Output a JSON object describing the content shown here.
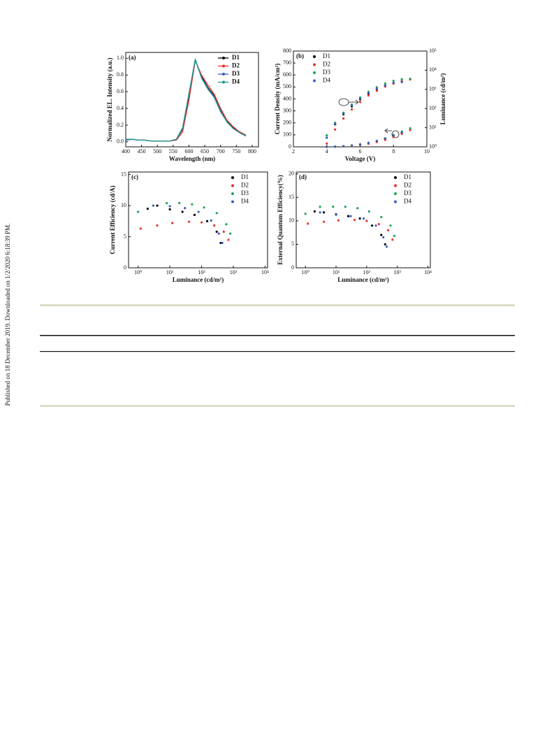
{
  "side_note": "Published on 18 December 2019. Downloaded on 1/2/2020 6:18:39 PM.",
  "chart_data": [
    {
      "type": "line",
      "panel_label": "(a)",
      "xlabel": "Wavelength (nm)",
      "ylabel": "Normalized EL. Intensity (a.u.)",
      "xlim": [
        400,
        820
      ],
      "xticks": [
        400,
        450,
        500,
        550,
        600,
        650,
        700,
        750,
        800
      ],
      "ylim": [
        -0.06,
        1.07
      ],
      "yticks": [
        {
          "value": 0,
          "label": "0.0"
        },
        0.2,
        0.4,
        0.6,
        0.8,
        {
          "value": 1,
          "label": "1.0"
        }
      ],
      "legend": "upper right",
      "legend_bold": true,
      "x": [
        400,
        420,
        440,
        460,
        480,
        500,
        520,
        540,
        560,
        580,
        600,
        620,
        640,
        660,
        680,
        700,
        720,
        740,
        760,
        780
      ],
      "series": [
        {
          "name": "D1",
          "color": "#000000",
          "values": [
            0.02,
            0.03,
            0.02,
            0.02,
            0.01,
            0.01,
            0.01,
            0.01,
            0.03,
            0.15,
            0.55,
            0.98,
            0.78,
            0.65,
            0.55,
            0.38,
            0.25,
            0.17,
            0.12,
            0.08
          ]
        },
        {
          "name": "D2",
          "color": "#e8312a",
          "values": [
            0.02,
            0.03,
            0.02,
            0.02,
            0.01,
            0.01,
            0.01,
            0.01,
            0.02,
            0.12,
            0.5,
            0.97,
            0.8,
            0.68,
            0.57,
            0.4,
            0.26,
            0.18,
            0.12,
            0.08
          ]
        },
        {
          "name": "D3",
          "color": "#3a5fbf",
          "values": [
            0.02,
            0.03,
            0.02,
            0.02,
            0.01,
            0.01,
            0.01,
            0.01,
            0.03,
            0.16,
            0.57,
            0.98,
            0.77,
            0.64,
            0.54,
            0.37,
            0.24,
            0.16,
            0.11,
            0.07
          ]
        },
        {
          "name": "D4",
          "color": "#1a9a8a",
          "values": [
            0.03,
            0.03,
            0.02,
            0.02,
            0.01,
            0.01,
            0.01,
            0.01,
            0.03,
            0.17,
            0.58,
            0.99,
            0.76,
            0.63,
            0.53,
            0.36,
            0.24,
            0.16,
            0.11,
            0.07
          ]
        }
      ]
    },
    {
      "type": "scatter",
      "panel_label": "(b)",
      "xlabel": "Voltage (V)",
      "ylabel": "Current Density (mA/cm²)",
      "y2label": "Luminance (cd/m²)",
      "xlim": [
        2,
        10
      ],
      "xticks": [
        2,
        4,
        6,
        8,
        10
      ],
      "ylim": [
        0,
        800
      ],
      "yticks": [
        0,
        100,
        200,
        300,
        400,
        500,
        600,
        700,
        800
      ],
      "y2log": true,
      "y2lim": [
        1,
        100000
      ],
      "y2ticks": [
        {
          "value": 1,
          "label": "10⁰"
        },
        {
          "value": 10,
          "label": "10¹"
        },
        {
          "value": 100,
          "label": "10²"
        },
        {
          "value": 1000,
          "label": "10³"
        },
        {
          "value": 10000,
          "label": "10⁴"
        },
        {
          "value": 100000,
          "label": "10⁵"
        }
      ],
      "legend": "upper left",
      "x": [
        4,
        4.5,
        5,
        5.5,
        6,
        6.5,
        7,
        7.5,
        8,
        8.5,
        9
      ],
      "series": [
        {
          "name": "D1",
          "color": "#000000",
          "values": [
            0,
            2,
            5,
            10,
            18,
            30,
            45,
            65,
            90,
            115,
            null
          ]
        },
        {
          "name": "D2",
          "color": "#e8312a",
          "values": [
            0,
            1,
            4,
            8,
            15,
            26,
            40,
            58,
            82,
            108,
            140
          ]
        },
        {
          "name": "D3",
          "color": "#1fa35a",
          "values": [
            0,
            2,
            5,
            11,
            20,
            33,
            50,
            72,
            100,
            128,
            155
          ]
        },
        {
          "name": "D4",
          "color": "#3a5fbf",
          "values": [
            0,
            2,
            6,
            12,
            21,
            34,
            50,
            70,
            95,
            120,
            null
          ]
        },
        {
          "axis": "y2",
          "color": "#000000",
          "values": [
            3,
            15,
            50,
            130,
            300,
            600,
            1000,
            1500,
            2100,
            2500,
            null
          ]
        },
        {
          "axis": "y2",
          "color": "#e8312a",
          "values": [
            1.5,
            8,
            30,
            90,
            220,
            480,
            850,
            1400,
            2000,
            2700,
            3300
          ]
        },
        {
          "axis": "y2",
          "color": "#1fa35a",
          "values": [
            4,
            18,
            60,
            160,
            380,
            750,
            1300,
            2000,
            2800,
            3400,
            3600
          ]
        },
        {
          "axis": "y2",
          "color": "#3a5fbf",
          "values": [
            3,
            16,
            55,
            145,
            330,
            650,
            1100,
            1600,
            2200,
            2400,
            null
          ]
        }
      ]
    },
    {
      "type": "scatter",
      "panel_label": "(c)",
      "xlabel": "Luminance (cd/m²)",
      "ylabel": "Current Efficiency (cd/A)",
      "xlog": true,
      "xlim": [
        0.5,
        12000
      ],
      "xticks": [
        {
          "value": 1,
          "label": "10⁰"
        },
        {
          "value": 10,
          "label": "10¹"
        },
        {
          "value": 100,
          "label": "10²"
        },
        {
          "value": 1000,
          "label": "10³"
        },
        {
          "value": 10000,
          "label": "10⁴"
        }
      ],
      "ylim": [
        0,
        15.4
      ],
      "yticks": [
        0,
        5,
        10,
        15
      ],
      "legend": "upper right",
      "series": [
        {
          "name": "D1",
          "color": "#000000",
          "x": [
            2,
            4,
            10,
            25,
            60,
            150,
            300,
            400
          ],
          "values": [
            9.5,
            10,
            9.4,
            9,
            8.5,
            7.5,
            5.8,
            4
          ]
        },
        {
          "name": "D2",
          "color": "#e8312a",
          "x": [
            1.2,
            4,
            12,
            40,
            100,
            250,
            500,
            700
          ],
          "values": [
            6.3,
            6.8,
            7.2,
            7.4,
            7.3,
            6.8,
            5.8,
            4.5
          ]
        },
        {
          "name": "D3",
          "color": "#1fa35a",
          "x": [
            1,
            3,
            8,
            20,
            50,
            120,
            300,
            600,
            800
          ],
          "values": [
            9,
            10,
            10.4,
            10.4,
            10.2,
            9.7,
            8.8,
            7,
            5.5
          ]
        },
        {
          "name": "D4",
          "color": "#3a5fbf",
          "x": [
            3,
            10,
            30,
            80,
            200,
            350,
            450
          ],
          "values": [
            10,
            9.9,
            9.6,
            9,
            7.6,
            5.5,
            4
          ]
        }
      ]
    },
    {
      "type": "scatter",
      "panel_label": "(d)",
      "xlabel": "Luminance (cd/m²)",
      "ylabel": "External Quantum Efficiency(%)",
      "xlog": true,
      "xlim": [
        0.5,
        12000
      ],
      "xticks": [
        {
          "value": 1,
          "label": "10⁰"
        },
        {
          "value": 10,
          "label": "10¹"
        },
        {
          "value": 100,
          "label": "10²"
        },
        {
          "value": 1000,
          "label": "10³"
        },
        {
          "value": 10000,
          "label": "10⁴"
        }
      ],
      "ylim": [
        0,
        20.4
      ],
      "yticks": [
        0,
        5,
        10,
        15,
        20
      ],
      "legend": "upper right",
      "series": [
        {
          "name": "D1",
          "color": "#000000",
          "x": [
            2,
            4,
            10,
            25,
            60,
            150,
            300,
            400
          ],
          "values": [
            12,
            11.8,
            11.4,
            11,
            10.5,
            9,
            7,
            5
          ]
        },
        {
          "name": "D2",
          "color": "#e8312a",
          "x": [
            1.2,
            4,
            12,
            40,
            100,
            250,
            500,
            700
          ],
          "values": [
            9.4,
            9.8,
            10.1,
            10.2,
            10,
            9.3,
            8,
            6
          ]
        },
        {
          "name": "D3",
          "color": "#1fa35a",
          "x": [
            1,
            3,
            8,
            20,
            50,
            120,
            300,
            600,
            800
          ],
          "values": [
            11.5,
            13,
            13,
            13,
            12.7,
            12,
            10.8,
            9,
            6.8
          ]
        },
        {
          "name": "D4",
          "color": "#3a5fbf",
          "x": [
            3,
            10,
            30,
            80,
            200,
            350,
            450
          ],
          "values": [
            11.8,
            11.3,
            11,
            10.5,
            9,
            6.5,
            4.5
          ]
        }
      ]
    }
  ]
}
